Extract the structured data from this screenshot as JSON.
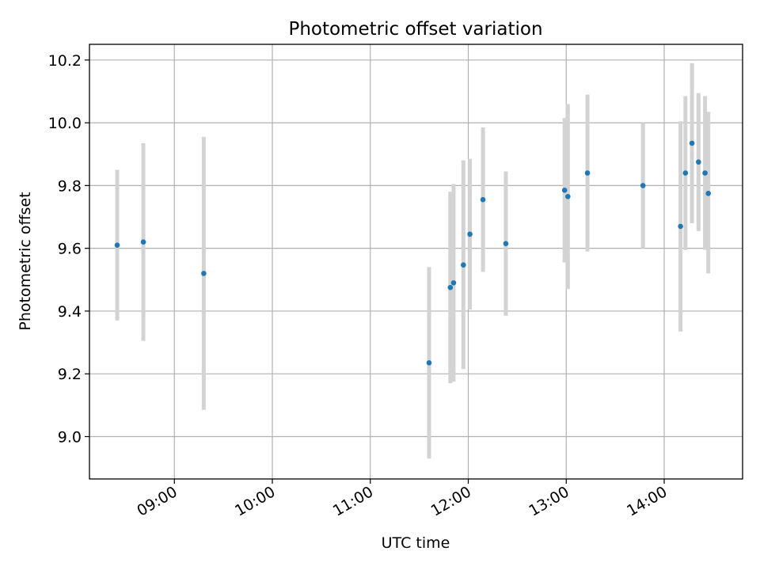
{
  "chart_data": {
    "type": "scatter",
    "title": "Photometric offset variation",
    "xlabel": "UTC time",
    "ylabel": "Photometric offset",
    "x_is_time": true,
    "xlim": [
      "08:08",
      "14:48"
    ],
    "ylim": [
      8.865,
      10.25
    ],
    "x_ticks": [
      "09:00",
      "10:00",
      "11:00",
      "12:00",
      "13:00",
      "14:00"
    ],
    "y_ticks": [
      "9.0",
      "9.2",
      "9.4",
      "9.6",
      "9.8",
      "10.0",
      "10.2"
    ],
    "grid": true,
    "colors": {
      "point": "#1f77b4",
      "errorbar": "#d3d3d3",
      "grid": "#b0b0b0"
    },
    "points": [
      {
        "x": "08:25",
        "y": 9.61,
        "lo": 9.37,
        "hi": 9.85
      },
      {
        "x": "08:41",
        "y": 9.62,
        "lo": 9.305,
        "hi": 9.935
      },
      {
        "x": "09:18",
        "y": 9.52,
        "lo": 9.085,
        "hi": 9.955
      },
      {
        "x": "11:36",
        "y": 9.235,
        "lo": 8.93,
        "hi": 9.54
      },
      {
        "x": "11:49",
        "y": 9.475,
        "lo": 9.17,
        "hi": 9.78
      },
      {
        "x": "11:51",
        "y": 9.49,
        "lo": 9.175,
        "hi": 9.805
      },
      {
        "x": "11:57",
        "y": 9.547,
        "lo": 9.215,
        "hi": 9.88
      },
      {
        "x": "12:01",
        "y": 9.645,
        "lo": 9.405,
        "hi": 9.885
      },
      {
        "x": "12:09",
        "y": 9.755,
        "lo": 9.525,
        "hi": 9.985
      },
      {
        "x": "12:23",
        "y": 9.615,
        "lo": 9.385,
        "hi": 9.845
      },
      {
        "x": "12:59",
        "y": 9.785,
        "lo": 9.555,
        "hi": 10.015
      },
      {
        "x": "13:01",
        "y": 9.765,
        "lo": 9.47,
        "hi": 10.06
      },
      {
        "x": "13:13",
        "y": 9.84,
        "lo": 9.59,
        "hi": 10.09
      },
      {
        "x": "13:47",
        "y": 9.8,
        "lo": 9.6,
        "hi": 10.0
      },
      {
        "x": "14:10",
        "y": 9.67,
        "lo": 9.335,
        "hi": 10.005
      },
      {
        "x": "14:13",
        "y": 9.84,
        "lo": 9.595,
        "hi": 10.085
      },
      {
        "x": "14:17",
        "y": 9.935,
        "lo": 9.68,
        "hi": 10.19
      },
      {
        "x": "14:21",
        "y": 9.875,
        "lo": 9.655,
        "hi": 10.095
      },
      {
        "x": "14:25",
        "y": 9.84,
        "lo": 9.595,
        "hi": 10.085
      },
      {
        "x": "14:27",
        "y": 9.775,
        "lo": 9.52,
        "hi": 10.035
      }
    ]
  }
}
